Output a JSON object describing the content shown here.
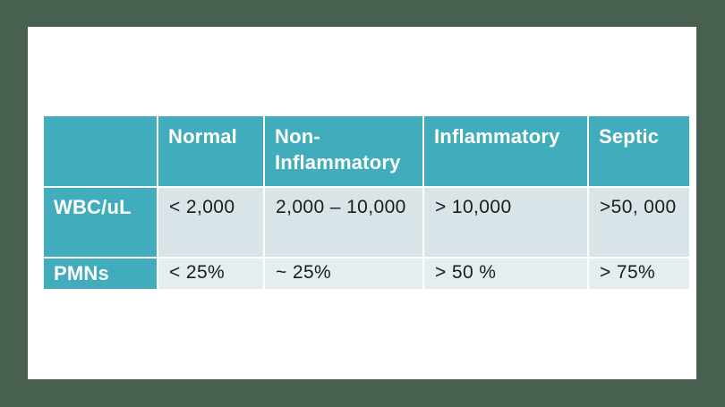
{
  "colors": {
    "canvas": "#47604f",
    "slide": "#ffffff",
    "teal": "#40acbc",
    "row1": "#d8e4e8",
    "row2": "#e4edf0",
    "header_text": "#ffffff",
    "data_text": "#1c1c1c"
  },
  "chart_data": {
    "type": "table",
    "columns": [
      "",
      "Normal",
      "Non-Inflammatory",
      "Inflammatory",
      "Septic"
    ],
    "rows": [
      {
        "label": "WBC/uL",
        "cells": [
          "< 2,000",
          "2,000 – 10,000",
          "> 10,000",
          ">50, 000"
        ]
      },
      {
        "label": "PMNs",
        "cells": [
          "< 25%",
          "~ 25%",
          "> 50 %",
          "> 75%"
        ]
      }
    ]
  },
  "table": {
    "columns": [
      "",
      "Normal",
      "Non-Inflammatory",
      "Inflammatory",
      "Septic"
    ],
    "rows": [
      {
        "label": "WBC/uL",
        "cells": [
          "< 2,000",
          "2,000 – 10,000",
          "> 10,000",
          ">50, 000"
        ]
      },
      {
        "label": "PMNs",
        "cells": [
          "< 25%",
          "~ 25%",
          "> 50 %",
          "> 75%"
        ]
      }
    ]
  }
}
